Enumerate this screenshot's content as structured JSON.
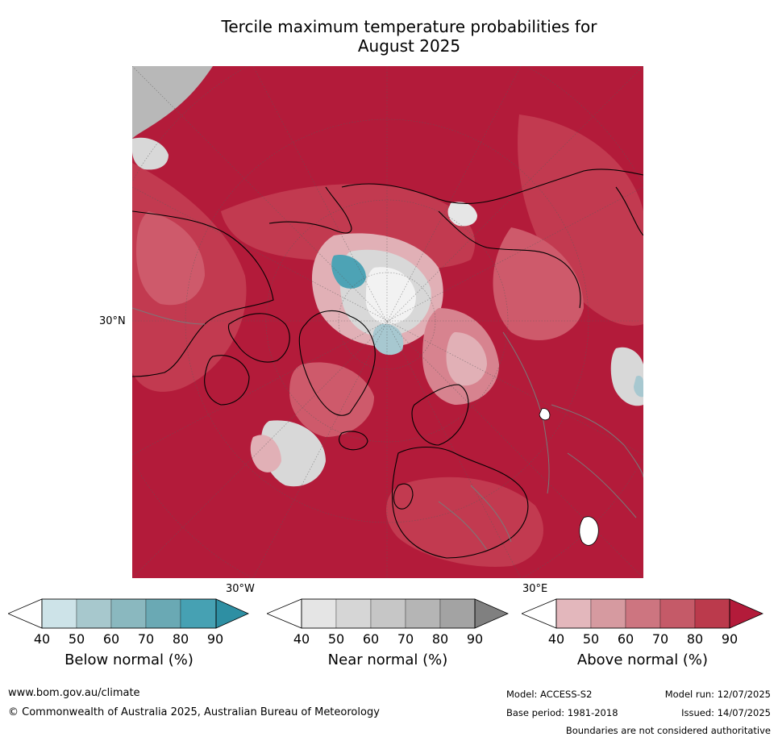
{
  "title_line1": "Tercile maximum temperature probabilities for",
  "title_line2": "August 2025",
  "map": {
    "lat_label": "30°N",
    "lon_labels": [
      "30°W",
      "30°E"
    ],
    "colors": {
      "above_90": "#b31b3a",
      "above_80": "#c23a50",
      "above_70": "#ce5a6b",
      "above_60": "#d7838f",
      "above_50": "#e1b0b6",
      "near_50": "#d8d8d8",
      "near_70": "#b8b8b8",
      "below_50": "#a7c8d0",
      "below_70": "#4da3b5",
      "white": "#ffffff"
    }
  },
  "colorbars": [
    {
      "title": "Below normal (%)",
      "ticks": [
        "40",
        "50",
        "60",
        "70",
        "80",
        "90"
      ],
      "colors": [
        "#cde3e8",
        "#a7c8cd",
        "#8ab8bf",
        "#6aa9b4",
        "#46a1b3",
        "#2e8fa3"
      ]
    },
    {
      "title": "Near normal (%)",
      "ticks": [
        "40",
        "50",
        "60",
        "70",
        "80",
        "90"
      ],
      "colors": [
        "#e5e5e5",
        "#d6d6d6",
        "#c6c6c6",
        "#b5b5b5",
        "#a3a3a3",
        "#808080"
      ]
    },
    {
      "title": "Above normal (%)",
      "ticks": [
        "40",
        "50",
        "60",
        "70",
        "80",
        "90"
      ],
      "colors": [
        "#e3b7bc",
        "#d69aa0",
        "#cd7580",
        "#c55a68",
        "#bb3a4c",
        "#b31b3a"
      ]
    }
  ],
  "footer": {
    "website": "www.bom.gov.au/climate",
    "copyright": "© Commonwealth of Australia 2025, Australian Bureau of Meteorology",
    "model": "Model: ACCESS-S2",
    "model_run": "Model run: 12/07/2025",
    "base_period": "Base period: 1981-2018",
    "issued": "Issued: 14/07/2025",
    "disclaimer": "Boundaries are not considered authoritative"
  }
}
